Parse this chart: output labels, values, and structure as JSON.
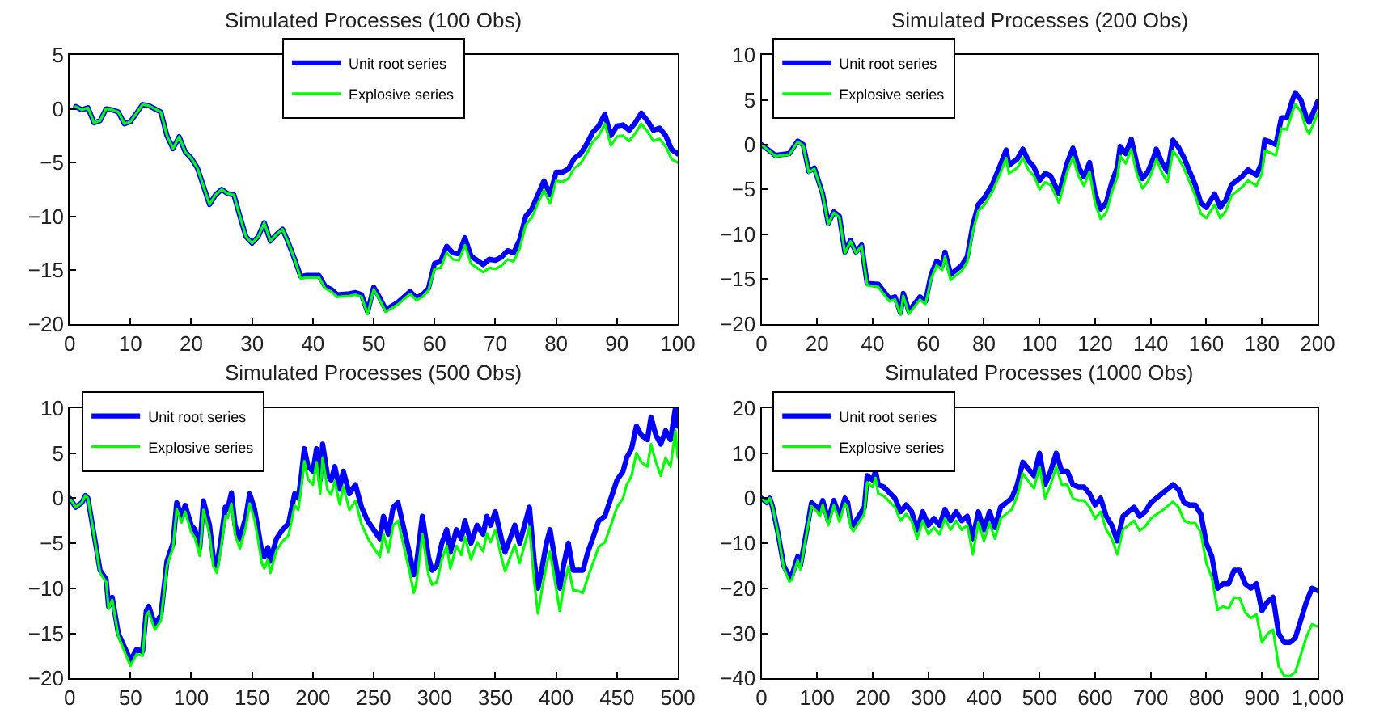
{
  "chart_data": [
    {
      "type": "line",
      "title": "Simulated Processes (100 Obs)",
      "legend": "top",
      "grid": false,
      "marker": "none",
      "line_style": "solid",
      "x": [
        1,
        2,
        3,
        4,
        5,
        6,
        7,
        8,
        9,
        10,
        12,
        13,
        15,
        16,
        17,
        18,
        19,
        20,
        21,
        22,
        23,
        24,
        25,
        26,
        27,
        28,
        29,
        30,
        31,
        32,
        33,
        34,
        35,
        36,
        37,
        38,
        39,
        41,
        42,
        43,
        44,
        46,
        47,
        48,
        49,
        50,
        51,
        52,
        54,
        56,
        57,
        58,
        59,
        60,
        61,
        62,
        63,
        64,
        65,
        66,
        68,
        69,
        70,
        71,
        72,
        73,
        74,
        75,
        76,
        77,
        78,
        79,
        80,
        81,
        82,
        83,
        84,
        85,
        86,
        87,
        88,
        89,
        90,
        91,
        92,
        93,
        94,
        95,
        96,
        97,
        98,
        99,
        100
      ],
      "xlim": [
        0,
        100
      ],
      "xticks": [
        0,
        10,
        20,
        30,
        40,
        50,
        60,
        70,
        80,
        90,
        100
      ],
      "ylim": [
        -20,
        5
      ],
      "yticks": [
        -20,
        -15,
        -10,
        -5,
        0,
        5
      ],
      "series": [
        {
          "name": "Unit root series",
          "color": "#0000ff",
          "values": [
            0.2,
            -0.1,
            0.1,
            -1.3,
            -1.1,
            0,
            -0.1,
            -0.3,
            -1.4,
            -1.2,
            0.4,
            0.3,
            -0.3,
            -2.5,
            -3.7,
            -2.6,
            -4,
            -4.6,
            -5.5,
            -7.2,
            -8.9,
            -8,
            -7.5,
            -7.9,
            -8,
            -10,
            -11.9,
            -12.5,
            -11.9,
            -10.6,
            -12.3,
            -11.7,
            -11.2,
            -12.5,
            -14,
            -15.6,
            -15.5,
            -15.5,
            -16.5,
            -16.8,
            -17.3,
            -17.2,
            -17.1,
            -17.3,
            -18.9,
            -16.6,
            -17.6,
            -18.7,
            -18,
            -17,
            -17.6,
            -17.3,
            -16.7,
            -14.4,
            -14.2,
            -12.8,
            -13.4,
            -13.5,
            -12,
            -13.7,
            -14.5,
            -14,
            -14.1,
            -13.8,
            -13.2,
            -13.4,
            -12.2,
            -10,
            -9.3,
            -8,
            -6.7,
            -8,
            -5.9,
            -5.9,
            -5.6,
            -4.6,
            -4.2,
            -3.3,
            -2.2,
            -1.6,
            -0.5,
            -2.5,
            -1.6,
            -1.5,
            -2,
            -1.3,
            -0.4,
            -1.1,
            -2,
            -1.8,
            -2.5,
            -3.8,
            -4.2
          ]
        },
        {
          "name": "Explosive series",
          "color": "#00ff00",
          "values": [
            0.2,
            -0.1,
            0.1,
            -1.3,
            -1.1,
            0,
            -0.1,
            -0.3,
            -1.4,
            -1.2,
            0.4,
            0.3,
            -0.3,
            -2.5,
            -3.7,
            -2.6,
            -4,
            -4.6,
            -5.5,
            -7.2,
            -8.9,
            -8,
            -7.5,
            -7.9,
            -8,
            -10,
            -11.9,
            -12.5,
            -11.9,
            -10.6,
            -12.3,
            -11.7,
            -11.2,
            -12.5,
            -14,
            -15.8,
            -15.7,
            -15.7,
            -16.7,
            -17,
            -17.5,
            -17.4,
            -17.3,
            -17.5,
            -19.1,
            -16.8,
            -17.8,
            -18.9,
            -18.2,
            -17.2,
            -17.8,
            -17.5,
            -16.9,
            -14.9,
            -14.8,
            -13.4,
            -14,
            -14.1,
            -12.7,
            -14.4,
            -15.2,
            -14.8,
            -14.9,
            -14.6,
            -14,
            -14.2,
            -13,
            -10.8,
            -10.1,
            -8.8,
            -7.6,
            -8.8,
            -6.7,
            -6.8,
            -6.5,
            -5.5,
            -5.1,
            -4.2,
            -3.1,
            -2.5,
            -1.4,
            -3.4,
            -2.6,
            -2.5,
            -3,
            -2.3,
            -1.4,
            -2.1,
            -3,
            -2.8,
            -3.5,
            -4.7,
            -5
          ]
        }
      ]
    },
    {
      "type": "line",
      "title": "Simulated Processes (200 Obs)",
      "legend": "top left",
      "grid": false,
      "marker": "none",
      "line_style": "solid",
      "x": [
        0,
        5,
        10,
        13,
        15,
        17,
        19,
        22,
        24,
        26,
        28,
        30,
        32,
        34,
        36,
        38,
        42,
        46,
        48,
        50,
        51,
        53,
        57,
        59,
        61,
        63,
        65,
        66,
        68,
        72,
        74,
        76,
        78,
        80,
        83,
        86,
        88,
        89,
        92,
        94,
        96,
        98,
        100,
        102,
        104,
        107,
        110,
        112,
        114,
        116,
        118,
        120,
        122,
        124,
        126,
        128,
        129,
        131,
        133,
        135,
        137,
        139,
        141,
        142,
        144,
        146,
        148,
        150,
        152,
        154,
        156,
        158,
        160,
        162,
        163,
        165,
        167,
        169,
        171,
        173,
        175,
        178,
        180,
        181,
        183,
        185,
        187,
        189,
        191,
        192,
        194,
        196,
        197,
        199,
        200
      ],
      "xlim": [
        0,
        200
      ],
      "xticks": [
        0,
        20,
        40,
        60,
        80,
        100,
        120,
        140,
        160,
        180,
        200
      ],
      "ylim": [
        -20,
        10
      ],
      "yticks": [
        -20,
        -15,
        -10,
        -5,
        0,
        5,
        10
      ],
      "series": [
        {
          "name": "Unit root series",
          "color": "#0000ff",
          "values": [
            0,
            -1.2,
            -1,
            0.4,
            0,
            -3,
            -2.6,
            -5.5,
            -8.8,
            -7.5,
            -8,
            -12,
            -10.7,
            -12,
            -11.2,
            -15.5,
            -15.6,
            -17.2,
            -17,
            -18.8,
            -16.6,
            -18.6,
            -17,
            -17.5,
            -14.5,
            -13,
            -13.5,
            -12,
            -14.5,
            -13.5,
            -12.5,
            -9,
            -6.7,
            -6,
            -4.5,
            -2.2,
            -0.6,
            -2.3,
            -1.6,
            -0.5,
            -1.8,
            -2.5,
            -4,
            -3.2,
            -3.5,
            -5.5,
            -2,
            -0.4,
            -2.5,
            -3.6,
            -2,
            -5.5,
            -7.2,
            -6.5,
            -4.2,
            -2.5,
            -0.2,
            -1,
            0.6,
            -2.2,
            -3.8,
            -3,
            -1.5,
            -0.5,
            -2,
            -3,
            0.5,
            -0.3,
            -1.5,
            -3,
            -4.5,
            -6.5,
            -7,
            -6,
            -5.5,
            -7,
            -6.2,
            -4.5,
            -4,
            -3.5,
            -2.8,
            -3.4,
            -2,
            0.5,
            0.3,
            0,
            3,
            3,
            5,
            5.8,
            5,
            3,
            2.5,
            4,
            4.8
          ]
        },
        {
          "name": "Explosive series",
          "color": "#00ff00",
          "values": [
            0,
            -1.3,
            -1.1,
            0.3,
            -0.1,
            -3.1,
            -2.7,
            -5.6,
            -8.9,
            -7.6,
            -8.1,
            -12.1,
            -10.8,
            -12.1,
            -11.3,
            -15.7,
            -15.9,
            -17.5,
            -17.3,
            -19,
            -16.9,
            -18.9,
            -17.3,
            -17.8,
            -15,
            -13.5,
            -14,
            -12.5,
            -15.1,
            -14.1,
            -13.1,
            -9.7,
            -7.4,
            -6.8,
            -5.3,
            -3.1,
            -1.5,
            -3.2,
            -2.6,
            -1.5,
            -2.8,
            -3.5,
            -5,
            -4.2,
            -4.5,
            -6.5,
            -3,
            -1.4,
            -3.5,
            -4.6,
            -3,
            -6.6,
            -8.3,
            -7.6,
            -5.3,
            -3.6,
            -1.3,
            -2.1,
            -0.5,
            -3.3,
            -4.9,
            -4.1,
            -2.6,
            -1.6,
            -3.1,
            -4.2,
            -0.7,
            -1.5,
            -2.7,
            -4.2,
            -5.7,
            -7.7,
            -8.2,
            -7.2,
            -6.7,
            -8.2,
            -7.4,
            -5.7,
            -5.2,
            -4.7,
            -4,
            -4.6,
            -3.2,
            -0.7,
            -0.9,
            -1.2,
            1.8,
            1.7,
            3.7,
            4.5,
            3.7,
            1.7,
            1.2,
            2.7,
            3.5
          ]
        }
      ]
    },
    {
      "type": "line",
      "title": "Simulated Processes (500 Obs)",
      "legend": "top left",
      "grid": false,
      "marker": "none",
      "line_style": "solid",
      "x": [
        0,
        5,
        10,
        13,
        15,
        20,
        25,
        30,
        32,
        35,
        40,
        45,
        50,
        55,
        60,
        63,
        65,
        70,
        75,
        80,
        85,
        88,
        92,
        95,
        100,
        103,
        107,
        110,
        115,
        118,
        121,
        124,
        128,
        130,
        133,
        136,
        140,
        145,
        148,
        152,
        155,
        158,
        160,
        163,
        165,
        170,
        175,
        180,
        185,
        188,
        190,
        193,
        196,
        200,
        203,
        206,
        208,
        212,
        215,
        218,
        222,
        225,
        230,
        235,
        240,
        245,
        250,
        255,
        258,
        262,
        266,
        270,
        275,
        280,
        283,
        285,
        290,
        295,
        298,
        302,
        306,
        310,
        313,
        318,
        322,
        325,
        330,
        335,
        340,
        343,
        346,
        350,
        355,
        358,
        362,
        366,
        370,
        375,
        378,
        382,
        385,
        388,
        392,
        395,
        398,
        403,
        406,
        410,
        414,
        418,
        422,
        426,
        430,
        435,
        440,
        445,
        450,
        455,
        458,
        462,
        466,
        470,
        475,
        478,
        482,
        486,
        490,
        494,
        498,
        500
      ],
      "xlim": [
        0,
        500
      ],
      "xticks": [
        0,
        50,
        100,
        150,
        200,
        250,
        300,
        350,
        400,
        450,
        500
      ],
      "ylim": [
        -20,
        10
      ],
      "yticks": [
        -20,
        -15,
        -10,
        -5,
        0,
        5,
        10
      ],
      "series": [
        {
          "name": "Unit root series",
          "color": "#0000ff",
          "values": [
            0,
            -1,
            -0.5,
            0.3,
            0,
            -4,
            -8,
            -9,
            -12,
            -11,
            -15,
            -16.5,
            -18,
            -16.8,
            -17,
            -12.5,
            -12,
            -14,
            -13,
            -7,
            -5,
            -0.5,
            -2,
            -0.8,
            -3,
            -3.5,
            -5.5,
            -0.3,
            -3,
            -6.5,
            -7.5,
            -5,
            -1,
            -1.2,
            0.6,
            -3,
            -4.5,
            -2,
            0.5,
            -1.2,
            -3.5,
            -6,
            -6.5,
            -5.5,
            -7,
            -4.5,
            -3.5,
            -2.8,
            0.5,
            0,
            2,
            5.5,
            3.5,
            3,
            5.5,
            2,
            6,
            2.5,
            2,
            3.5,
            1,
            3,
            0.5,
            1.5,
            -1,
            -2.5,
            -3.5,
            -4.5,
            -2,
            -4,
            -1,
            -0.5,
            -3.5,
            -6.5,
            -8.5,
            -7.5,
            -2,
            -6.5,
            -8,
            -7.5,
            -5,
            -3.5,
            -6,
            -3.5,
            -4.5,
            -2.5,
            -5,
            -3,
            -4,
            -2,
            -3,
            -1.5,
            -4.5,
            -6,
            -4.5,
            -3,
            -5,
            -2.5,
            -1,
            -7,
            -10,
            -8,
            -5,
            -3.5,
            -6,
            -10,
            -7.5,
            -5,
            -8,
            -8,
            -8,
            -6,
            -4.5,
            -2.5,
            -2,
            0,
            2,
            3,
            4.5,
            5.5,
            8,
            7,
            6.5,
            9,
            7,
            6,
            7.5,
            6.5,
            10,
            8
          ]
        },
        {
          "name": "Explosive series",
          "color": "#00ff00",
          "values": [
            0,
            -1,
            -0.5,
            0.3,
            0,
            -4.1,
            -8.3,
            -9.3,
            -12.3,
            -11.3,
            -15.3,
            -17,
            -18.6,
            -17.3,
            -17.5,
            -13,
            -12.6,
            -14.6,
            -13.6,
            -7.5,
            -5.5,
            -1.2,
            -2.7,
            -1.5,
            -3.8,
            -4.4,
            -6.4,
            -1.3,
            -4,
            -7.5,
            -8.3,
            -6,
            -2,
            -2.2,
            -0.6,
            -4.1,
            -5.6,
            -3.1,
            -0.6,
            -2.4,
            -4.7,
            -7.2,
            -7.8,
            -6.8,
            -8.3,
            -5.8,
            -4.8,
            -4.1,
            -0.8,
            -1.3,
            0.7,
            4.1,
            2.1,
            1.5,
            4,
            0.5,
            4.5,
            0.9,
            0.4,
            1.9,
            -0.7,
            1.3,
            -1.3,
            -0.3,
            -2.9,
            -4.4,
            -5.5,
            -6.5,
            -4,
            -6,
            -3,
            -2.5,
            -5.5,
            -8.5,
            -10.5,
            -9.5,
            -4,
            -8.5,
            -9.6,
            -9.3,
            -6.8,
            -5.3,
            -7.8,
            -5.3,
            -6.3,
            -4.3,
            -6.8,
            -4.9,
            -5.9,
            -3.9,
            -4.9,
            -3.5,
            -6.6,
            -8.1,
            -6.6,
            -5.2,
            -7.2,
            -4.7,
            -3.2,
            -9.3,
            -12.8,
            -10.4,
            -7.4,
            -5.9,
            -8.4,
            -12.5,
            -10,
            -7.6,
            -10.2,
            -10.3,
            -10.5,
            -8.8,
            -7.3,
            -5.4,
            -4.9,
            -3,
            -1,
            0,
            1.5,
            2.5,
            5,
            4,
            3.5,
            6,
            4,
            2.5,
            4.5,
            3.5,
            7.5,
            4.5
          ]
        }
      ]
    },
    {
      "type": "line",
      "title": "Simulated Processes (1000 Obs)",
      "legend": "top left",
      "grid": false,
      "marker": "none",
      "line_style": "solid",
      "x": [
        0,
        10,
        15,
        20,
        30,
        40,
        50,
        55,
        60,
        65,
        70,
        80,
        90,
        100,
        105,
        110,
        120,
        130,
        140,
        150,
        155,
        160,
        165,
        175,
        185,
        190,
        200,
        205,
        210,
        220,
        240,
        250,
        260,
        270,
        280,
        290,
        300,
        310,
        320,
        330,
        340,
        350,
        360,
        370,
        380,
        390,
        400,
        410,
        420,
        430,
        440,
        450,
        460,
        470,
        480,
        490,
        500,
        510,
        520,
        530,
        540,
        550,
        560,
        570,
        580,
        590,
        600,
        610,
        620,
        630,
        640,
        650,
        660,
        670,
        680,
        690,
        700,
        710,
        720,
        740,
        750,
        760,
        770,
        780,
        790,
        800,
        810,
        820,
        830,
        840,
        850,
        860,
        870,
        880,
        890,
        900,
        910,
        920,
        930,
        940,
        950,
        960,
        970,
        980,
        990,
        1000
      ],
      "xlim": [
        0,
        1000
      ],
      "xticks": [
        0,
        100,
        200,
        300,
        400,
        500,
        600,
        700,
        800,
        900,
        {
          "value": 1000,
          "label": "1,000"
        }
      ],
      "ylim": [
        -40,
        20
      ],
      "yticks": [
        -40,
        -30,
        -20,
        -10,
        0,
        10,
        20
      ],
      "series": [
        {
          "name": "Unit root series",
          "color": "#0000ff",
          "values": [
            0,
            -1,
            0,
            -2,
            -8,
            -15,
            -17.5,
            -17,
            -15,
            -13,
            -15,
            -8,
            -1,
            -2,
            -3,
            -0.5,
            -5,
            -0.5,
            -4,
            0,
            -1,
            -5,
            -6,
            -4,
            -2,
            5,
            4,
            6,
            3,
            2.5,
            0,
            -3,
            -1.5,
            -3,
            -7,
            -3,
            -6,
            -4.5,
            -6,
            -2.5,
            -5,
            -3,
            -5,
            -4,
            -9,
            -3,
            -7,
            -3,
            -6.5,
            -2,
            -1,
            0,
            3,
            8,
            6.5,
            5,
            10,
            3,
            6,
            10,
            6,
            6,
            3,
            2.5,
            2.5,
            1,
            -1.5,
            0,
            -4,
            -6,
            -9.5,
            -4,
            -3,
            -2,
            -4,
            -3,
            -1,
            0,
            1,
            3,
            2,
            -1,
            -1.5,
            -1.5,
            -3.5,
            -10,
            -13,
            -20,
            -19,
            -19,
            -16,
            -16,
            -19,
            -20,
            -19,
            -25,
            -23,
            -22,
            -30,
            -32,
            -32,
            -31,
            -27,
            -23,
            -20,
            -20.5
          ]
        },
        {
          "name": "Explosive series",
          "color": "#00ff00",
          "values": [
            0,
            -1,
            0,
            -2,
            -8,
            -15.5,
            -18.5,
            -18,
            -15.8,
            -13.8,
            -15.8,
            -8.6,
            -1.8,
            -3,
            -4,
            -1.5,
            -6,
            -1.6,
            -5.2,
            -1.2,
            -2.2,
            -6.3,
            -7.3,
            -5.4,
            -3.5,
            3.5,
            2.5,
            4.5,
            1,
            0.5,
            -2,
            -5,
            -3.5,
            -5,
            -9,
            -5,
            -8,
            -6.5,
            -8,
            -4.5,
            -7,
            -5,
            -7,
            -6,
            -12.5,
            -5.2,
            -9.5,
            -5.5,
            -9,
            -4.5,
            -3.5,
            -2.5,
            0.5,
            5.5,
            3.8,
            2.2,
            7,
            0,
            3,
            7,
            3,
            3,
            0,
            -0.5,
            -0.5,
            -2,
            -4.5,
            -3,
            -7,
            -9,
            -12.5,
            -7,
            -6,
            -5,
            -7.2,
            -6.3,
            -4.5,
            -3.6,
            -2.8,
            -0.8,
            -2,
            -5,
            -5.5,
            -5.5,
            -7.6,
            -14.4,
            -17.6,
            -24.8,
            -24,
            -24.5,
            -22,
            -22.2,
            -25.4,
            -26.6,
            -25.8,
            -32,
            -30.1,
            -29.2,
            -37.3,
            -39.4,
            -39.5,
            -38.6,
            -34.7,
            -30.8,
            -28,
            -28.5
          ]
        }
      ]
    }
  ]
}
